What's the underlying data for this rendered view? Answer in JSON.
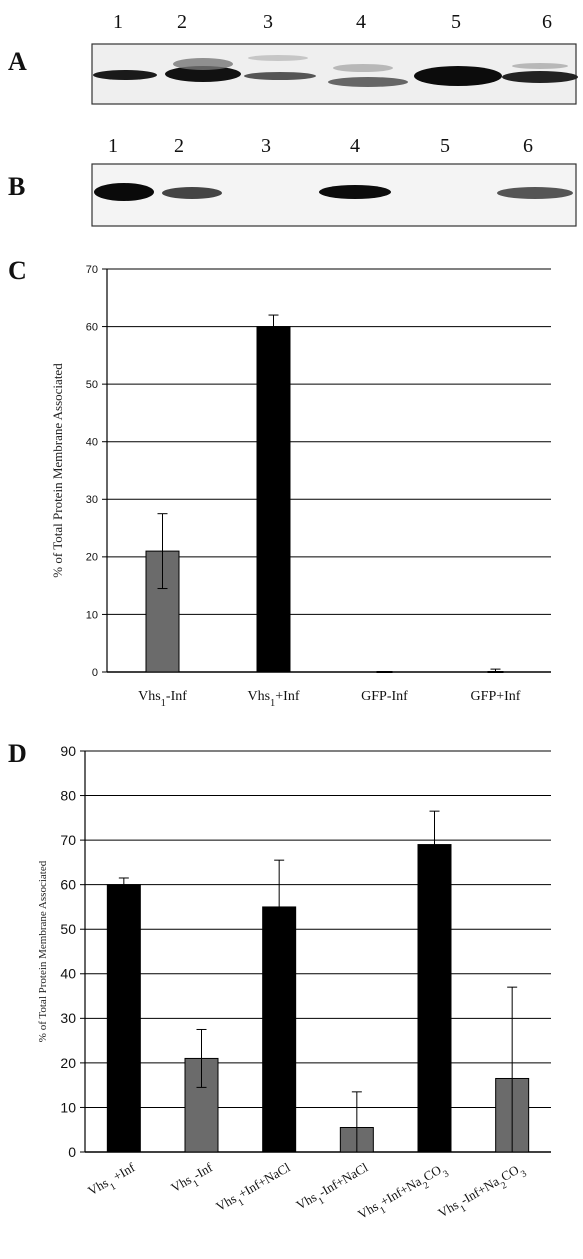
{
  "panels": {
    "a": {
      "letter": "A",
      "lanes": [
        "1",
        "2",
        "3",
        "4",
        "5",
        "6"
      ]
    },
    "b": {
      "letter": "B",
      "lanes": [
        "1",
        "2",
        "3",
        "4",
        "5",
        "6"
      ]
    },
    "c": {
      "letter": "C"
    },
    "d": {
      "letter": "D"
    }
  },
  "colors": {
    "bar_black": "#000000",
    "bar_grey": "#6b6b6b",
    "grid": "#000000"
  },
  "chart_data": [
    {
      "panel": "C",
      "type": "bar",
      "categories": [
        "Vhs1-Inf",
        "Vhs1+Inf",
        "GFP-Inf",
        "GFP+Inf"
      ],
      "values": [
        21,
        60,
        0,
        0
      ],
      "errors": [
        6.5,
        2,
        0,
        0.5
      ],
      "colors": [
        "#6b6b6b",
        "#000000",
        "#6b6b6b",
        "#000000"
      ],
      "ylabel": "% of Total Protein Membrane Associated",
      "xlabel": "",
      "ylim": [
        0,
        70
      ],
      "yticks": [
        "0",
        "10",
        "20",
        "30",
        "40",
        "50",
        "60",
        "70"
      ],
      "grid": true
    },
    {
      "panel": "D",
      "type": "bar",
      "categories": [
        "Vhs1 +Inf",
        "Vhs1-Inf",
        "Vhs1+Inf+NaCl",
        "Vhs1-Inf+NaCl",
        "Vhs1+Inf+Na2CO3",
        "Vhs1-Inf+Na2CO3"
      ],
      "values": [
        60,
        21,
        55,
        5.5,
        69,
        16.5
      ],
      "errors": [
        1.5,
        6.5,
        10.5,
        8,
        7.5,
        20.5
      ],
      "colors": [
        "#000000",
        "#6b6b6b",
        "#000000",
        "#6b6b6b",
        "#000000",
        "#6b6b6b"
      ],
      "ylabel": "% of Total Protein Membrane Associated",
      "xlabel": "",
      "ylim": [
        0,
        90
      ],
      "yticks": [
        "0",
        "10",
        "20",
        "30",
        "40",
        "50",
        "60",
        "70",
        "80",
        "90"
      ],
      "grid": true
    }
  ]
}
